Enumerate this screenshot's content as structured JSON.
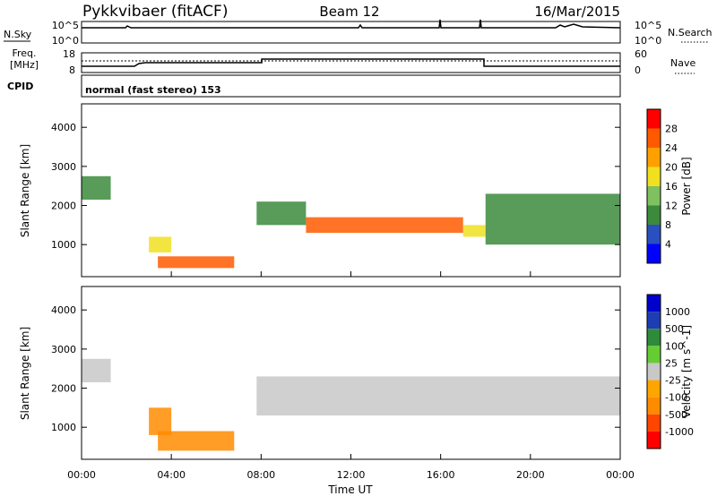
{
  "header": {
    "title": "Pykkvibaer (fitACF)",
    "beam": "Beam 12",
    "date": "16/Mar/2015"
  },
  "top_panels": {
    "nsky_label": "N.Sky",
    "nsearch_label": "N.Search",
    "noise_ticks_left": [
      "10^5",
      "10^0"
    ],
    "noise_ticks_right": [
      "10^5",
      "10^0"
    ],
    "freq_label_1": "Freq.",
    "freq_label_2": "[MHz]",
    "freq_ticks": [
      "18",
      "8"
    ],
    "nave_label": "Nave",
    "nave_ticks": [
      "60",
      "0"
    ],
    "cpid_label": "CPID",
    "cpid_text": "normal (fast stereo) 153"
  },
  "colors": {
    "power_scale": [
      "#0000ff",
      "#2a4fc0",
      "#3c8a3c",
      "#7fc060",
      "#f0e020",
      "#ffa000",
      "#ff5a00",
      "#ff0000"
    ],
    "velocity_scale": [
      "#0000cd",
      "#1e3cb4",
      "#2e8b3c",
      "#66cc33",
      "#c8c8c8",
      "#ffa500",
      "#ff8c00",
      "#ff4500",
      "#ff0000"
    ]
  },
  "chart_data": [
    {
      "type": "heatmap",
      "name": "Power",
      "ylabel": "Slant Range [km]",
      "ylim": [
        180,
        4600
      ],
      "yticks": [
        1000,
        2000,
        3000,
        4000
      ],
      "xlim": [
        0,
        24
      ],
      "colorbar_label": "Power [dB]",
      "colorbar_ticks": [
        "28",
        "24",
        "20",
        "16",
        "12",
        "8",
        "4"
      ],
      "colorbar_range": [
        0,
        32
      ],
      "echo_bands": [
        {
          "t0": 0.0,
          "t1": 1.3,
          "r0": 2150,
          "r1": 2750,
          "power": 10
        },
        {
          "t0": 3.4,
          "t1": 6.8,
          "r0": 400,
          "r1": 700,
          "power": 24
        },
        {
          "t0": 3.0,
          "t1": 4.0,
          "r0": 800,
          "r1": 1200,
          "power": 18
        },
        {
          "t0": 7.8,
          "t1": 10.0,
          "r0": 1500,
          "r1": 2100,
          "power": 10
        },
        {
          "t0": 10.0,
          "t1": 17.0,
          "r0": 1300,
          "r1": 1700,
          "power": 26
        },
        {
          "t0": 17.0,
          "t1": 18.0,
          "r0": 1200,
          "r1": 1500,
          "power": 16
        },
        {
          "t0": 18.0,
          "t1": 24.0,
          "r0": 1000,
          "r1": 2300,
          "power": 10
        }
      ]
    },
    {
      "type": "heatmap",
      "name": "Velocity",
      "ylabel": "Slant Range [km]",
      "xlabel": "Time UT",
      "ylim": [
        180,
        4600
      ],
      "yticks": [
        1000,
        2000,
        3000,
        4000
      ],
      "xlim": [
        0,
        24
      ],
      "xticks": [
        "00:00",
        "04:00",
        "08:00",
        "12:00",
        "16:00",
        "20:00",
        "00:00"
      ],
      "colorbar_label": "Velocity [m s^-1]",
      "colorbar_ticks": [
        "1000",
        "500",
        "100",
        "25",
        "-25",
        "-100",
        "-500",
        "-1000"
      ],
      "echo_bands": [
        {
          "t0": 0.0,
          "t1": 1.3,
          "r0": 2150,
          "r1": 2750,
          "velocity": 0
        },
        {
          "t0": 3.4,
          "t1": 6.8,
          "r0": 400,
          "r1": 900,
          "velocity": -300
        },
        {
          "t0": 3.0,
          "t1": 4.0,
          "r0": 800,
          "r1": 1500,
          "velocity": -300
        },
        {
          "t0": 7.8,
          "t1": 24.0,
          "r0": 1300,
          "r1": 2300,
          "velocity": 0
        }
      ]
    }
  ]
}
